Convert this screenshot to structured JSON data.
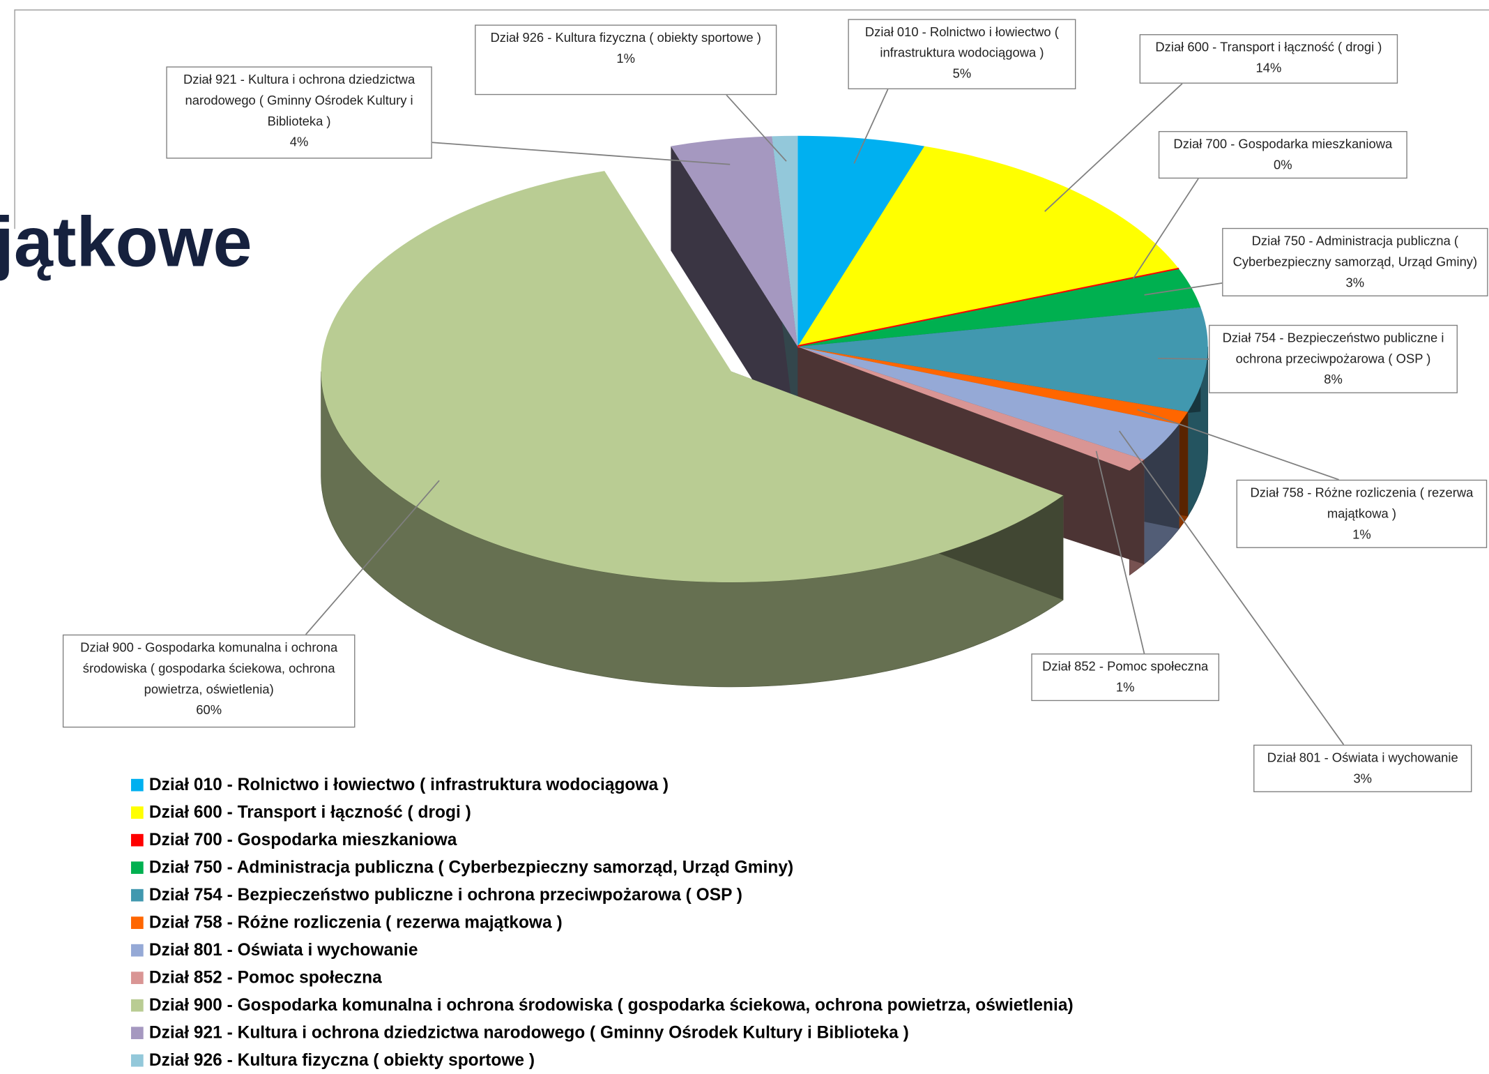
{
  "heading": "jątkowe",
  "chart_data": {
    "type": "pie3d",
    "categories": [
      "Dział 010 - Rolnictwo i łowiectwo ( infrastruktura wodociągowa )",
      "Dział 600 - Transport i łączność ( drogi )",
      "Dział 700 - Gospodarka mieszkaniowa",
      "Dział 750 - Administracja publiczna ( Cyberbezpieczny samorząd, Urząd Gminy)",
      "Dział 754 - Bezpieczeństwo publiczne i ochrona przeciwpożarowa ( OSP )",
      "Dział 758 - Różne rozliczenia ( rezerwa majątkowa )",
      "Dział 801 - Oświata i wychowanie",
      "Dział 852 - Pomoc społeczna",
      "Dział 900 - Gospodarka komunalna i ochrona środowiska ( gospodarka ściekowa, ochrona powietrza, oświetlenia)",
      "Dział 921 - Kultura i ochrona dziedzictwa narodowego ( Gminny Ośrodek Kultury i Biblioteka )",
      "Dział 926 - Kultura fizyczna ( obiekty sportowe )"
    ],
    "values": [
      5,
      14,
      0,
      3,
      8,
      1,
      3,
      1,
      60,
      4,
      1
    ],
    "value_labels": [
      "5%",
      "14%",
      "0%",
      "3%",
      "8%",
      "1%",
      "3%",
      "1%",
      "60%",
      "4%",
      "1%"
    ],
    "colors": [
      "#00b0f0",
      "#ffff00",
      "#ff0000",
      "#00b050",
      "#4198af",
      "#ff6600",
      "#95a9d6",
      "#d99594",
      "#b9cc93",
      "#a598c0",
      "#93c8da"
    ],
    "exploded": [
      8
    ],
    "legend": "bottom-left"
  }
}
